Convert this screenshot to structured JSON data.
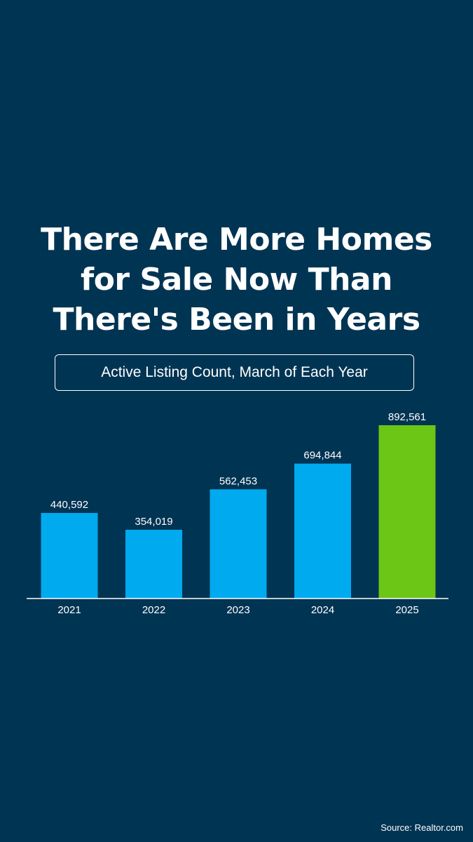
{
  "headline": {
    "line1": "There Are More Homes",
    "line2": "for Sale Now Than",
    "line3": "There's Been in Years"
  },
  "subtitle": "Active Listing Count, March of Each Year",
  "source": "Source: Realtor.com",
  "colors": {
    "background": "#003453",
    "bar": "#00aaee",
    "highlight_bar": "#6cc615",
    "text": "#ffffff"
  },
  "chart_data": {
    "type": "bar",
    "categories": [
      "2021",
      "2022",
      "2023",
      "2024",
      "2025"
    ],
    "values": [
      440592,
      354019,
      562453,
      694844,
      892561
    ],
    "data_labels": [
      "440,592",
      "354,019",
      "562,453",
      "694,844",
      "892,561"
    ],
    "highlight_category": "2025",
    "title": "Active Listing Count, March of Each Year",
    "xlabel": "",
    "ylabel": "",
    "grid": false
  }
}
